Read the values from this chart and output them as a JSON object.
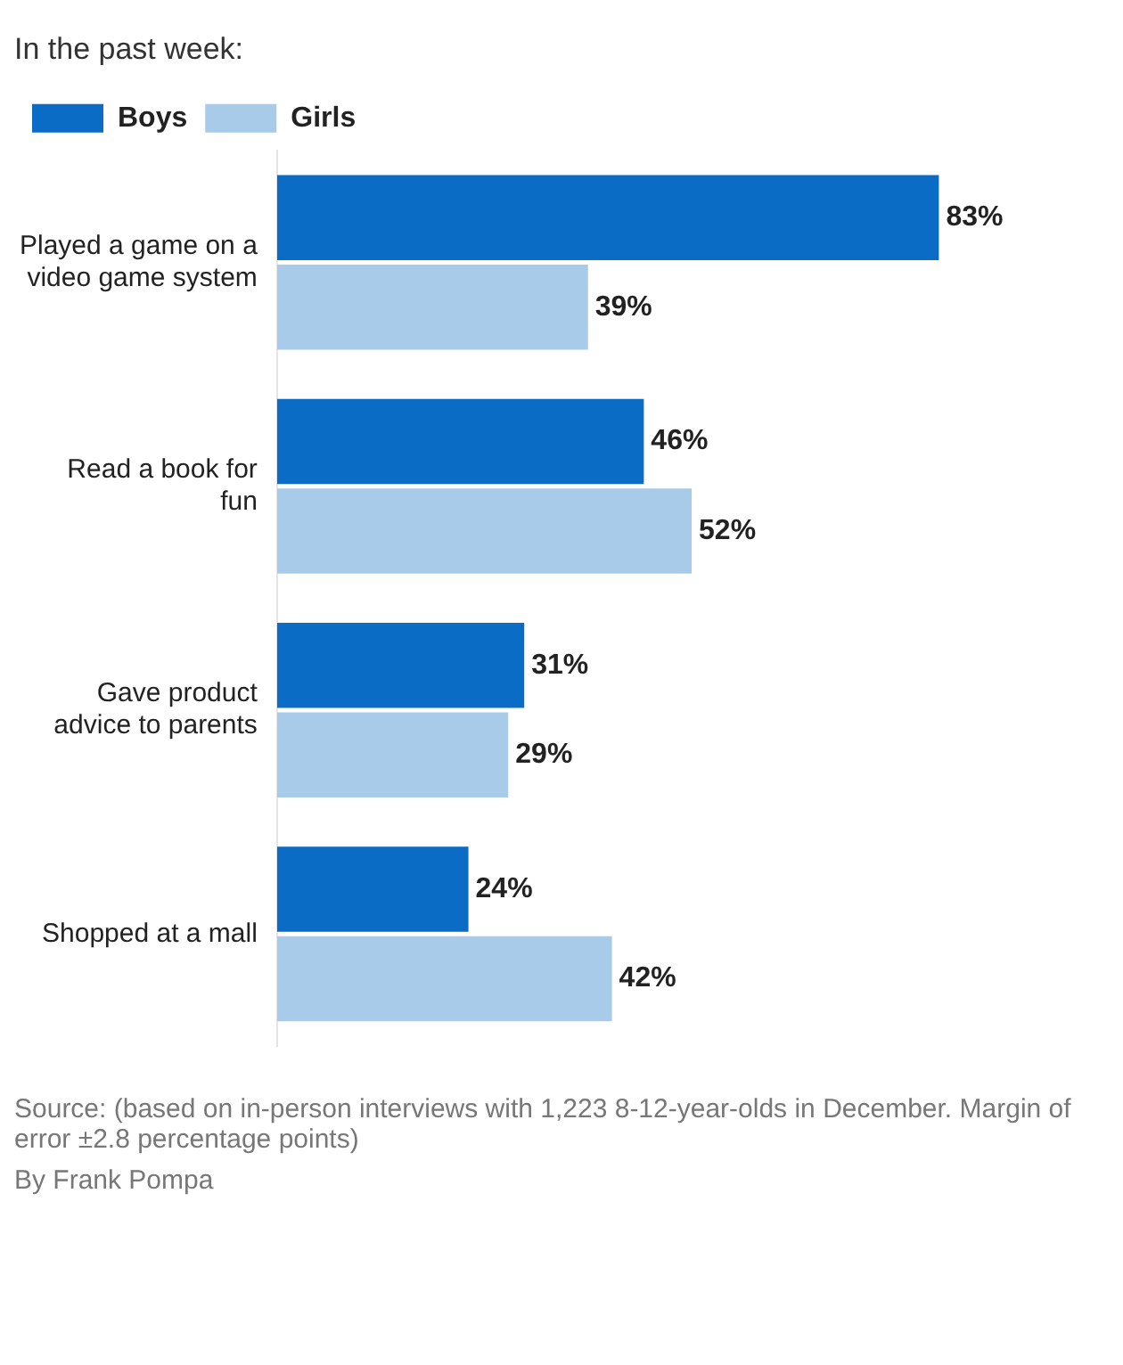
{
  "chart_data": {
    "type": "bar",
    "orientation": "horizontal",
    "title": "In the past week:",
    "categories": [
      "Played a game on a video game system",
      "Read a book for fun",
      "Gave product advice to parents",
      "Shopped at a mall"
    ],
    "series": [
      {
        "name": "Boys",
        "color": "#0a6cc4",
        "values": [
          83,
          46,
          31,
          24
        ],
        "value_labels": [
          "83%",
          "46%",
          "31%",
          "24%"
        ]
      },
      {
        "name": "Girls",
        "color": "#a9cbea",
        "values": [
          39,
          52,
          29,
          42
        ],
        "value_labels": [
          "39%",
          "52%",
          "29%",
          "42%"
        ]
      }
    ],
    "legend": "top left",
    "annotations": [
      "Source: (based on in-person interviews with 1,223 8-12-year-olds in December. Margin of error ±2.8 percentage points)",
      "By Frank Pompa"
    ]
  }
}
